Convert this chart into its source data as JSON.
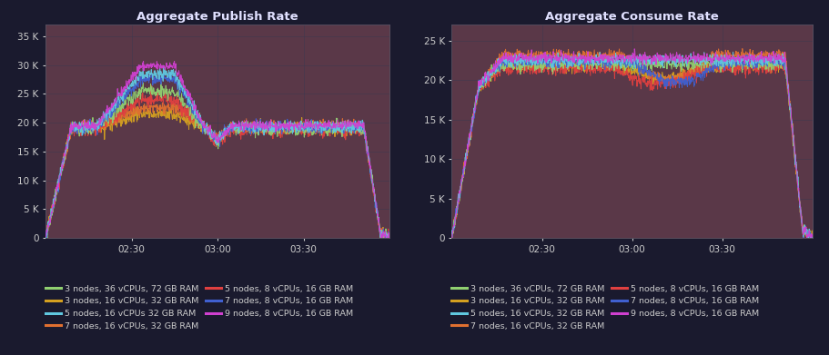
{
  "bg_color": "#1a1a2e",
  "plot_bg_color": "#252030",
  "grid_color": "#3a3a50",
  "text_color": "#cccccc",
  "title_color": "#e0e0ff",
  "left_title": "Aggregate Publish Rate",
  "right_title": "Aggregate Consume Rate",
  "x_tick_labels": [
    "02:30",
    "03:00",
    "03:30"
  ],
  "left_ylim": [
    0,
    37000
  ],
  "right_ylim": [
    0,
    27000
  ],
  "left_yticks": [
    0,
    5000,
    10000,
    15000,
    20000,
    25000,
    30000,
    35000
  ],
  "left_ytick_labels": [
    "0",
    "5 K",
    "10 K",
    "15 K",
    "20 K",
    "25 K",
    "30 K",
    "35 K"
  ],
  "right_yticks": [
    0,
    5000,
    10000,
    15000,
    20000,
    25000
  ],
  "right_ytick_labels": [
    "0",
    "5 K",
    "10 K",
    "15 K",
    "20 K",
    "25 K"
  ],
  "fill_color": "#5a3848",
  "series_colors": {
    "3n_36v_72r": "#90d070",
    "3n_16v_32r": "#d4a020",
    "5n_16v_32r": "#60c8e0",
    "7n_16v_32r": "#e07030",
    "5n_8v_16r": "#e04040",
    "7n_8v_16r": "#4060d0",
    "9n_8v_16r": "#d040d0"
  },
  "legend_entries_left": [
    {
      "label": "3 nodes, 36 vCPUs, 72 GB RAM",
      "color": "#90d070"
    },
    {
      "label": "3 nodes, 16 vCPUs, 32 GB RAM",
      "color": "#d4a020"
    },
    {
      "label": "5 nodes, 16 vCPUs 32 GB RAM",
      "color": "#60c8e0"
    },
    {
      "label": "7 nodes, 16 vCPUs, 32 GB RAM",
      "color": "#e07030"
    },
    {
      "label": "5 nodes, 8 vCPUs, 16 GB RAM",
      "color": "#e04040"
    },
    {
      "label": "7 nodes, 8 vCPUs, 16 GB RAM",
      "color": "#4060d0"
    },
    {
      "label": "9 nodes, 8 vCPUs, 16 GB RAM",
      "color": "#d040d0"
    }
  ],
  "legend_entries_right": [
    {
      "label": "3 nodes, 36 vCPUs, 72 GB RAM",
      "color": "#90d070"
    },
    {
      "label": "3 nodes, 16 vCPUs, 32 GB RAM",
      "color": "#d4a020"
    },
    {
      "label": "5 nodes, 16 vCPUs, 32 GB RAM",
      "color": "#60c8e0"
    },
    {
      "label": "7 nodes, 16 vCPUs, 32 GB RAM",
      "color": "#e07030"
    },
    {
      "label": "5 nodes, 8 vCPUs, 16 GB RAM",
      "color": "#e04040"
    },
    {
      "label": "7 nodes, 8 vCPUs, 16 GB RAM",
      "color": "#4060d0"
    },
    {
      "label": "9 nodes, 8 vCPUs, 16 GB RAM",
      "color": "#d040d0"
    }
  ]
}
